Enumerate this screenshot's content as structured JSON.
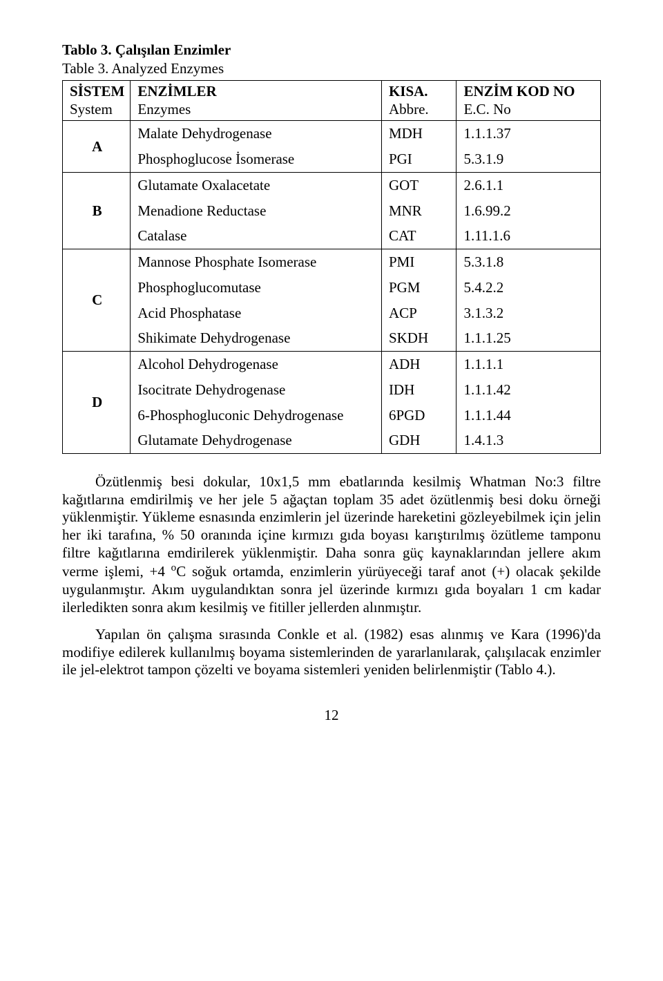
{
  "caption_bold": "Tablo 3. Çalışılan Enzimler",
  "caption": "Table 3. Analyzed Enzymes",
  "headers": {
    "col1_l1": "SİSTEM",
    "col1_l2": "System",
    "col2_l1": "ENZİMLER",
    "col2_l2": "Enzymes",
    "col3_l1": "KISA.",
    "col3_l2": "Abbre.",
    "col4_l1": "ENZİM KOD NO",
    "col4_l2": "E.C. No"
  },
  "groups": [
    {
      "letter": "A",
      "rows": [
        {
          "enzyme": "Malate Dehydrogenase",
          "abbr": "MDH",
          "ec": "1.1.1.37"
        },
        {
          "enzyme": "Phosphoglucose İsomerase",
          "abbr": "PGI",
          "ec": "5.3.1.9"
        }
      ]
    },
    {
      "letter": "B",
      "rows": [
        {
          "enzyme": "Glutamate Oxalacetate",
          "abbr": "GOT",
          "ec": "2.6.1.1"
        },
        {
          "enzyme": "Menadione Reductase",
          "abbr": "MNR",
          "ec": "1.6.99.2"
        },
        {
          "enzyme": "Catalase",
          "abbr": "CAT",
          "ec": "1.11.1.6"
        }
      ]
    },
    {
      "letter": "C",
      "rows": [
        {
          "enzyme": "Mannose Phosphate Isomerase",
          "abbr": "PMI",
          "ec": "5.3.1.8"
        },
        {
          "enzyme": "Phosphoglucomutase",
          "abbr": "PGM",
          "ec": "5.4.2.2"
        },
        {
          "enzyme": "Acid Phosphatase",
          "abbr": "ACP",
          "ec": "3.1.3.2"
        },
        {
          "enzyme": "Shikimate Dehydrogenase",
          "abbr": "SKDH",
          "ec": "1.1.1.25"
        }
      ]
    },
    {
      "letter": "D",
      "rows": [
        {
          "enzyme": "Alcohol Dehydrogenase",
          "abbr": "ADH",
          "ec": "1.1.1.1"
        },
        {
          "enzyme": "Isocitrate Dehydrogenase",
          "abbr": "IDH",
          "ec": "1.1.1.42"
        },
        {
          "enzyme": "6-Phosphogluconic Dehydrogenase",
          "abbr": "6PGD",
          "ec": "1.1.1.44"
        },
        {
          "enzyme": "Glutamate Dehydrogenase",
          "abbr": "GDH",
          "ec": "1.4.1.3"
        }
      ]
    }
  ],
  "para1_a": "Özütlenmiş besi dokular, 10x1,5 mm ebatlarında kesilmiş Whatman No:3 filtre kağıtlarına emdirilmiş ve her jele 5 ağaçtan toplam 35 adet özütlenmiş besi doku örneği yüklenmiştir. Yükleme esnasında enzimlerin jel üzerinde hareketini gözleyebilmek için jelin her iki tarafına, % 50 oranında içine kırmızı gıda boyası karıştırılmış özütleme tamponu filtre kağıtlarına emdirilerek yüklenmiştir. Daha sonra güç kaynaklarından jellere akım verme işlemi, +4 ",
  "para1_b": "C soğuk ortamda, enzimlerin yürüyeceği taraf anot (+) olacak şekilde uygulanmıştır. Akım uygulandıktan sonra jel üzerinde kırmızı gıda boyaları 1 cm kadar ilerledikten sonra akım kesilmiş ve fitiller jellerden alınmıştır.",
  "para2": "Yapılan ön çalışma sırasında Conkle et al. (1982) esas alınmış ve Kara (1996)'da modifiye edilerek kullanılmış boyama sistemlerinden de yararlanılarak, çalışılacak enzimler ile jel-elektrot tampon çözelti ve boyama sistemleri yeniden belirlenmiştir (Tablo 4.).",
  "page_number": "12"
}
